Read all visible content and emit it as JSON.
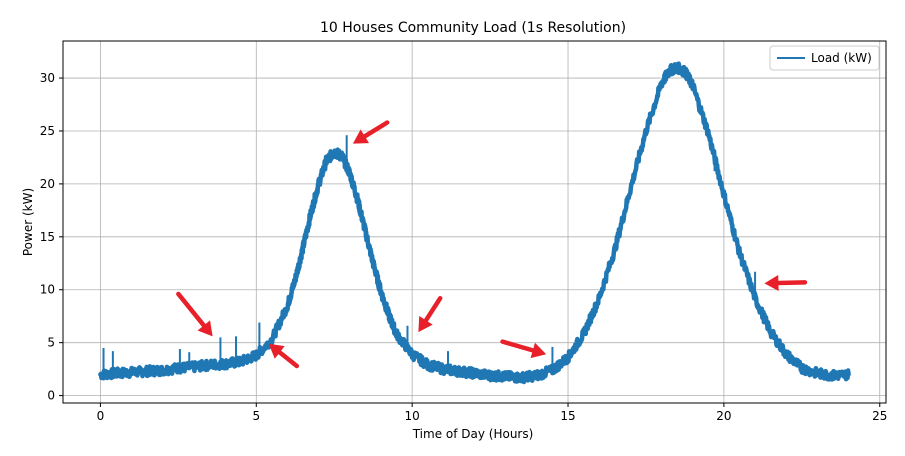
{
  "chart_data": {
    "type": "line",
    "title": "10 Houses Community Load (1s Resolution)",
    "xlabel": "Time of Day (Hours)",
    "ylabel": "Power (kW)",
    "xlim": [
      -1.2,
      25.2
    ],
    "ylim": [
      -0.7,
      33.5
    ],
    "xticks": [
      0,
      5,
      10,
      15,
      20,
      25
    ],
    "yticks": [
      0,
      5,
      10,
      15,
      20,
      25,
      30
    ],
    "grid": true,
    "legend_position": "upper right",
    "series": [
      {
        "name": "Load (kW)",
        "color": "#1f77b4",
        "x": [
          0,
          0.5,
          1,
          1.5,
          2,
          2.5,
          3,
          3.5,
          4,
          4.5,
          5,
          5.5,
          6,
          6.25,
          6.5,
          6.75,
          7,
          7.25,
          7.5,
          7.75,
          8,
          8.25,
          8.5,
          8.75,
          9,
          9.25,
          9.5,
          10,
          10.5,
          11,
          11.5,
          12,
          12.5,
          13,
          13.5,
          14,
          14.5,
          15,
          15.5,
          16,
          16.5,
          17,
          17.5,
          18,
          18.25,
          18.5,
          18.75,
          19,
          19.5,
          20,
          20.5,
          21,
          21.5,
          22,
          22.5,
          23,
          23.5,
          24
        ],
        "y": [
          2.0,
          2.1,
          2.2,
          2.3,
          2.4,
          2.6,
          2.7,
          2.9,
          3.0,
          3.2,
          3.8,
          5.3,
          8.5,
          11.0,
          14.0,
          17.2,
          20.0,
          22.2,
          23.0,
          22.6,
          21.0,
          18.5,
          15.5,
          12.5,
          9.8,
          7.6,
          5.8,
          3.9,
          2.9,
          2.5,
          2.3,
          2.1,
          1.9,
          1.8,
          1.7,
          1.9,
          2.4,
          3.6,
          5.8,
          9.2,
          13.8,
          19.5,
          25.0,
          29.5,
          30.7,
          31.0,
          30.6,
          29.3,
          24.8,
          19.0,
          13.5,
          9.2,
          6.0,
          3.9,
          2.6,
          2.1,
          1.9,
          2.0
        ]
      }
    ],
    "spikes": [
      {
        "x": 0.1,
        "y": 4.5
      },
      {
        "x": 0.4,
        "y": 4.2
      },
      {
        "x": 2.55,
        "y": 4.4
      },
      {
        "x": 2.85,
        "y": 4.1
      },
      {
        "x": 3.85,
        "y": 5.5
      },
      {
        "x": 4.35,
        "y": 5.6
      },
      {
        "x": 5.1,
        "y": 6.9
      },
      {
        "x": 7.9,
        "y": 24.6
      },
      {
        "x": 9.85,
        "y": 6.6
      },
      {
        "x": 11.15,
        "y": 4.2
      },
      {
        "x": 14.5,
        "y": 4.6
      },
      {
        "x": 17.4,
        "y": 23.8
      },
      {
        "x": 19.7,
        "y": 21.2
      },
      {
        "x": 21.0,
        "y": 11.7
      },
      {
        "x": 21.2,
        "y": 8.4
      }
    ],
    "annotations": [
      {
        "type": "arrow",
        "color": "#e8202a",
        "from": [
          2.5,
          9.6
        ],
        "to": [
          3.6,
          5.6
        ]
      },
      {
        "type": "arrow",
        "color": "#e8202a",
        "from": [
          6.3,
          2.8
        ],
        "to": [
          5.4,
          4.9
        ]
      },
      {
        "type": "arrow",
        "color": "#e8202a",
        "from": [
          9.2,
          25.8
        ],
        "to": [
          8.1,
          23.8
        ]
      },
      {
        "type": "arrow",
        "color": "#e8202a",
        "from": [
          10.9,
          9.2
        ],
        "to": [
          10.2,
          6.0
        ]
      },
      {
        "type": "arrow",
        "color": "#e8202a",
        "from": [
          12.9,
          5.1
        ],
        "to": [
          14.3,
          3.9
        ]
      },
      {
        "type": "arrow",
        "color": "#e8202a",
        "from": [
          22.6,
          10.7
        ],
        "to": [
          21.3,
          10.6
        ]
      }
    ]
  }
}
